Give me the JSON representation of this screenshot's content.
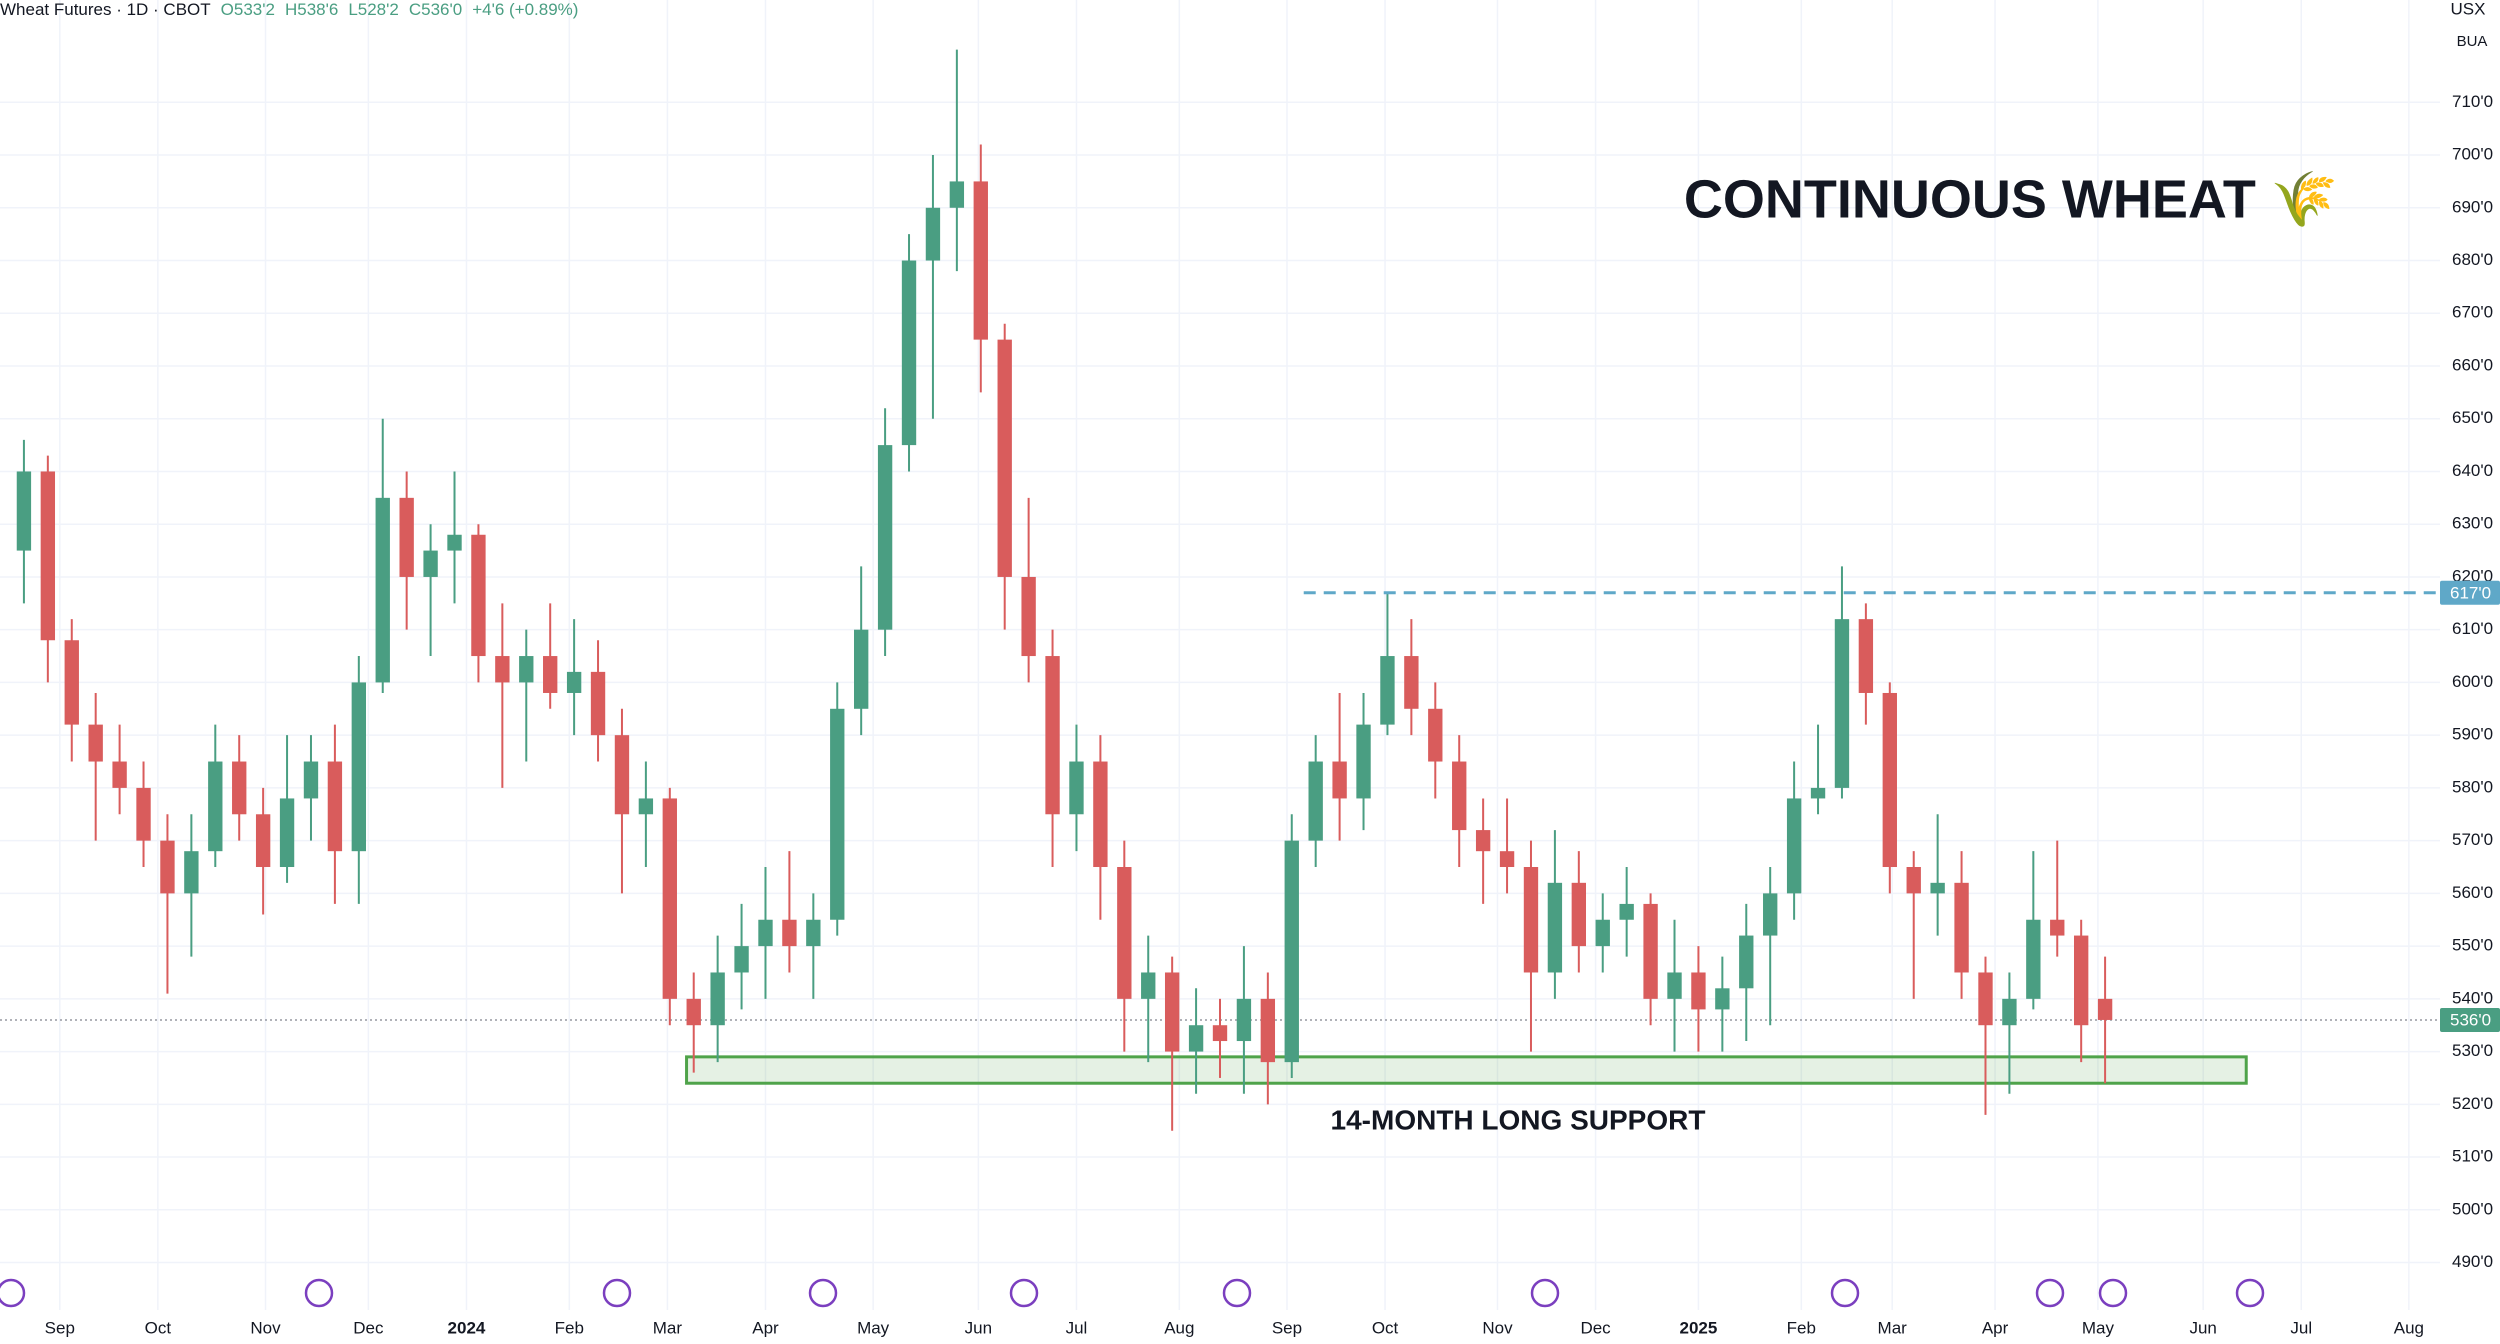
{
  "header": {
    "symbol": "Wheat Futures · 1D · CBOT",
    "ohlc": [
      "O533'2",
      "H538'6",
      "L528'2",
      "C536'0"
    ],
    "change": "+4'6 (+0.89%)"
  },
  "axis_badges": [
    "USX",
    "BUA"
  ],
  "chart_data": {
    "type": "candlestick",
    "title": "CONTINUOUS WHEAT 🌾",
    "annotation": "14-MONTH LONG SUPPORT",
    "up_color": "#4a9e82",
    "down_color": "#d95c5c",
    "open": [
      625,
      640,
      608,
      592,
      585,
      580,
      570,
      560,
      568,
      585,
      575,
      565,
      578,
      585,
      568,
      600,
      635,
      620,
      625,
      628,
      605,
      600,
      605,
      598,
      602,
      590,
      575,
      578,
      540,
      535,
      545,
      550,
      555,
      550,
      555,
      595,
      610,
      645,
      680,
      690,
      695,
      665,
      620,
      605,
      575,
      585,
      565,
      540,
      545,
      530,
      535,
      532,
      540,
      528,
      570,
      585,
      578,
      592,
      605,
      595,
      585,
      572,
      568,
      565,
      545,
      562,
      550,
      555,
      558,
      540,
      545,
      538,
      542,
      552,
      560,
      578,
      580,
      612,
      598,
      565,
      560,
      562,
      545,
      535,
      540,
      555,
      552,
      540
    ],
    "high": [
      646,
      643,
      612,
      598,
      592,
      585,
      575,
      575,
      592,
      590,
      580,
      590,
      590,
      592,
      605,
      650,
      640,
      630,
      640,
      630,
      615,
      610,
      615,
      612,
      608,
      595,
      585,
      580,
      545,
      552,
      558,
      565,
      568,
      560,
      600,
      622,
      652,
      685,
      700,
      720,
      702,
      668,
      635,
      610,
      592,
      590,
      570,
      552,
      548,
      542,
      540,
      550,
      545,
      575,
      590,
      598,
      598,
      617,
      612,
      600,
      590,
      578,
      578,
      570,
      572,
      568,
      560,
      565,
      560,
      555,
      550,
      548,
      558,
      565,
      585,
      592,
      622,
      615,
      600,
      568,
      575,
      568,
      548,
      545,
      568,
      570,
      555,
      548
    ],
    "low": [
      615,
      600,
      585,
      570,
      575,
      565,
      541,
      548,
      565,
      570,
      556,
      562,
      570,
      558,
      558,
      598,
      610,
      605,
      615,
      600,
      580,
      585,
      595,
      590,
      585,
      560,
      565,
      535,
      526,
      528,
      538,
      540,
      545,
      540,
      552,
      590,
      605,
      640,
      650,
      678,
      655,
      610,
      600,
      565,
      568,
      555,
      530,
      528,
      515,
      522,
      525,
      522,
      520,
      525,
      565,
      570,
      572,
      590,
      590,
      578,
      565,
      558,
      560,
      530,
      540,
      545,
      545,
      548,
      535,
      530,
      530,
      530,
      532,
      535,
      555,
      575,
      578,
      592,
      560,
      540,
      552,
      540,
      518,
      522,
      538,
      548,
      528,
      524
    ],
    "close": [
      640,
      608,
      592,
      585,
      580,
      570,
      560,
      568,
      585,
      575,
      565,
      578,
      585,
      568,
      600,
      635,
      620,
      625,
      628,
      605,
      600,
      605,
      598,
      602,
      590,
      575,
      578,
      540,
      535,
      545,
      550,
      555,
      550,
      555,
      595,
      610,
      645,
      680,
      690,
      695,
      665,
      620,
      605,
      575,
      585,
      565,
      540,
      545,
      530,
      535,
      532,
      540,
      528,
      570,
      585,
      578,
      592,
      605,
      595,
      585,
      572,
      568,
      565,
      545,
      562,
      550,
      555,
      558,
      540,
      545,
      538,
      542,
      552,
      560,
      578,
      580,
      612,
      598,
      565,
      560,
      562,
      545,
      535,
      540,
      555,
      552,
      535,
      536
    ],
    "xlim": [
      -1,
      101
    ],
    "xticks": [
      {
        "value": 1.5,
        "label": "Sep"
      },
      {
        "value": 5.6,
        "label": "Oct"
      },
      {
        "value": 10.1,
        "label": "Nov"
      },
      {
        "value": 14.4,
        "label": "Dec"
      },
      {
        "value": 18.5,
        "label": "2024"
      },
      {
        "value": 22.8,
        "label": "Feb"
      },
      {
        "value": 26.9,
        "label": "Mar"
      },
      {
        "value": 31,
        "label": "Apr"
      },
      {
        "value": 35.5,
        "label": "May"
      },
      {
        "value": 39.9,
        "label": "Jun"
      },
      {
        "value": 44,
        "label": "Jul"
      },
      {
        "value": 48.3,
        "label": "Aug"
      },
      {
        "value": 52.8,
        "label": "Sep"
      },
      {
        "value": 56.9,
        "label": "Oct"
      },
      {
        "value": 61.6,
        "label": "Nov"
      },
      {
        "value": 65.7,
        "label": "Dec"
      },
      {
        "value": 70,
        "label": "2025"
      },
      {
        "value": 74.3,
        "label": "Feb"
      },
      {
        "value": 78.1,
        "label": "Mar"
      },
      {
        "value": 82.4,
        "label": "Apr"
      },
      {
        "value": 86.7,
        "label": "May"
      },
      {
        "value": 91.1,
        "label": "Jun"
      },
      {
        "value": 95.2,
        "label": "Jul"
      },
      {
        "value": 99.7,
        "label": "Aug"
      }
    ],
    "ylim": [
      481,
      729.4
    ],
    "yticks": [
      {
        "value": 490,
        "label": "490'0"
      },
      {
        "value": 500,
        "label": "500'0"
      },
      {
        "value": 510,
        "label": "510'0"
      },
      {
        "value": 520,
        "label": "520'0"
      },
      {
        "value": 530,
        "label": "530'0"
      },
      {
        "value": 540,
        "label": "540'0"
      },
      {
        "value": 550,
        "label": "550'0"
      },
      {
        "value": 560,
        "label": "560'0"
      },
      {
        "value": 570,
        "label": "570'0"
      },
      {
        "value": 580,
        "label": "580'0"
      },
      {
        "value": 590,
        "label": "590'0"
      },
      {
        "value": 600,
        "label": "600'0"
      },
      {
        "value": 610,
        "label": "610'0"
      },
      {
        "value": 620,
        "label": "620'0"
      },
      {
        "value": 630,
        "label": "630'0"
      },
      {
        "value": 640,
        "label": "640'0"
      },
      {
        "value": 650,
        "label": "650'0"
      },
      {
        "value": 660,
        "label": "660'0"
      },
      {
        "value": 670,
        "label": "670'0"
      },
      {
        "value": 680,
        "label": "680'0"
      },
      {
        "value": 690,
        "label": "690'0"
      },
      {
        "value": 700,
        "label": "700'0"
      },
      {
        "value": 710,
        "label": "710'0"
      }
    ],
    "grid": true,
    "support_zone": {
      "x": [
        27.7,
        92.9
      ],
      "y": [
        524,
        529
      ],
      "color": "#4fa34a"
    },
    "resistance_line": {
      "value": 617,
      "label": "617'0",
      "x_start": 53.5,
      "color": "#5fa8c8"
    },
    "last_price": {
      "value": 536,
      "label": "536'0",
      "color": "#4a9e82"
    }
  }
}
